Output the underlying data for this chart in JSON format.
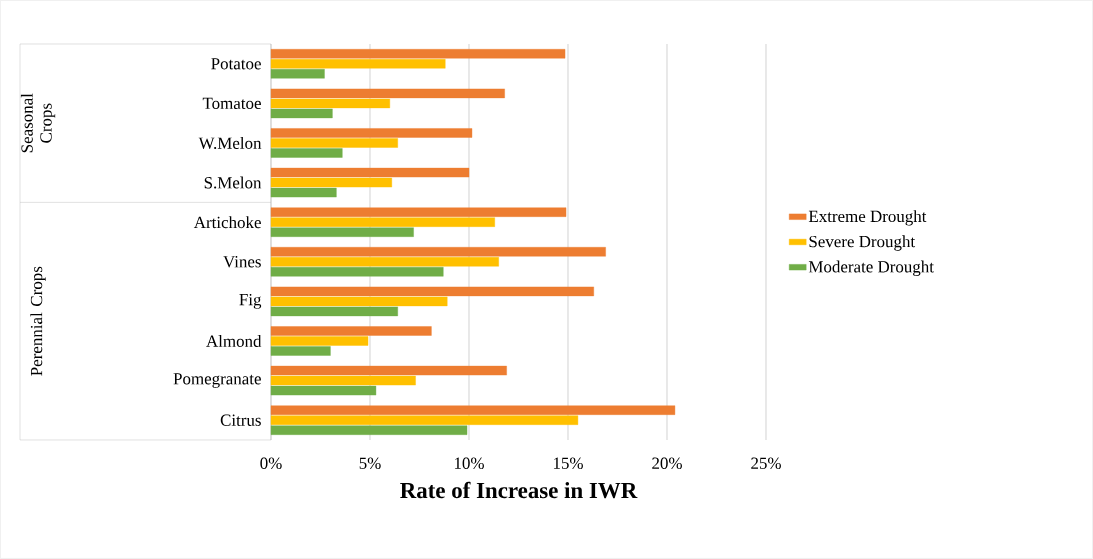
{
  "chart_data": {
    "type": "bar",
    "orientation": "horizontal",
    "xlabel": "Rate of Increase in IWR",
    "categories": [
      "Potatoe",
      "Tomatoe",
      "W.Melon",
      "S.Melon",
      "Artichoke",
      "Vines",
      "Fig",
      "Almond",
      "Pomegranate",
      "Citrus"
    ],
    "series": [
      {
        "name": "Extreme Drought",
        "color": "#ed7d31",
        "values": [
          14.85,
          11.8,
          10.15,
          10.0,
          14.9,
          16.9,
          16.3,
          8.1,
          11.9,
          20.4
        ]
      },
      {
        "name": "Severe Drought",
        "color": "#ffc000",
        "values": [
          8.8,
          6.0,
          6.4,
          6.1,
          11.3,
          11.5,
          8.9,
          4.9,
          7.3,
          15.5
        ]
      },
      {
        "name": "Moderate Drought",
        "color": "#70ad47",
        "values": [
          2.7,
          3.1,
          3.6,
          3.3,
          7.2,
          8.7,
          6.4,
          3.0,
          5.3,
          9.9
        ]
      }
    ],
    "xlim": [
      0,
      25
    ],
    "xticks": [
      {
        "value": 0,
        "label": "0%"
      },
      {
        "value": 5,
        "label": "5%"
      },
      {
        "value": 10,
        "label": "10%"
      },
      {
        "value": 15,
        "label": "15%"
      },
      {
        "value": 20,
        "label": "20%"
      },
      {
        "value": 25,
        "label": "25%"
      }
    ],
    "grid": "x",
    "legend": "right",
    "annotations": [
      "Seasonal Crops",
      "Perennial Crops"
    ]
  }
}
